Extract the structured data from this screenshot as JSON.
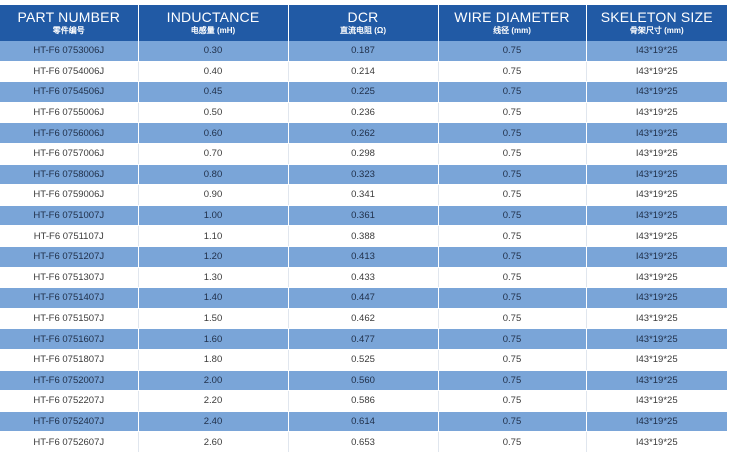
{
  "headers": [
    {
      "main": "PART NUMBER",
      "sub": "零件编号"
    },
    {
      "main": "INDUCTANCE",
      "sub": "电感量 (mH)"
    },
    {
      "main": "DCR",
      "sub": "直流电阻 (Ω)"
    },
    {
      "main": "WIRE DIAMETER",
      "sub": "线径 (mm)"
    },
    {
      "main": "SKELETON SIZE",
      "sub": "骨架尺寸 (mm)"
    }
  ],
  "rows": [
    [
      "HT-F6 0753006J",
      "0.30",
      "0.187",
      "0.75",
      "I43*19*25"
    ],
    [
      "HT-F6 0754006J",
      "0.40",
      "0.214",
      "0.75",
      "I43*19*25"
    ],
    [
      "HT-F6 0754506J",
      "0.45",
      "0.225",
      "0.75",
      "I43*19*25"
    ],
    [
      "HT-F6 0755006J",
      "0.50",
      "0.236",
      "0.75",
      "I43*19*25"
    ],
    [
      "HT-F6 0756006J",
      "0.60",
      "0.262",
      "0.75",
      "I43*19*25"
    ],
    [
      "HT-F6 0757006J",
      "0.70",
      "0.298",
      "0.75",
      "I43*19*25"
    ],
    [
      "HT-F6 0758006J",
      "0.80",
      "0.323",
      "0.75",
      "I43*19*25"
    ],
    [
      "HT-F6 0759006J",
      "0.90",
      "0.341",
      "0.75",
      "I43*19*25"
    ],
    [
      "HT-F6 0751007J",
      "1.00",
      "0.361",
      "0.75",
      "I43*19*25"
    ],
    [
      "HT-F6 0751107J",
      "1.10",
      "0.388",
      "0.75",
      "I43*19*25"
    ],
    [
      "HT-F6 0751207J",
      "1.20",
      "0.413",
      "0.75",
      "I43*19*25"
    ],
    [
      "HT-F6 0751307J",
      "1.30",
      "0.433",
      "0.75",
      "I43*19*25"
    ],
    [
      "HT-F6 0751407J",
      "1.40",
      "0.447",
      "0.75",
      "I43*19*25"
    ],
    [
      "HT-F6 0751507J",
      "1.50",
      "0.462",
      "0.75",
      "I43*19*25"
    ],
    [
      "HT-F6 0751607J",
      "1.60",
      "0.477",
      "0.75",
      "I43*19*25"
    ],
    [
      "HT-F6 0751807J",
      "1.80",
      "0.525",
      "0.75",
      "I43*19*25"
    ],
    [
      "HT-F6 0752007J",
      "2.00",
      "0.560",
      "0.75",
      "I43*19*25"
    ],
    [
      "HT-F6 0752207J",
      "2.20",
      "0.586",
      "0.75",
      "I43*19*25"
    ],
    [
      "HT-F6 0752407J",
      "2.40",
      "0.614",
      "0.75",
      "I43*19*25"
    ],
    [
      "HT-F6 0752607J",
      "2.60",
      "0.653",
      "0.75",
      "I43*19*25"
    ]
  ],
  "colors": {
    "header_bg": "#215aa5",
    "stripe_bg": "#7aa5d8",
    "plain_bg": "#ffffff"
  }
}
